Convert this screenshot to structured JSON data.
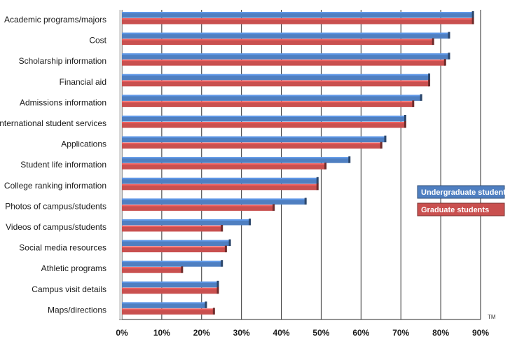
{
  "chart_data": {
    "type": "bar",
    "orientation": "horizontal",
    "categories": [
      "Academic programs/majors",
      "Cost",
      "Scholarship information",
      "Financial aid",
      "Admissions information",
      "International student services",
      "Applications",
      "Student life information",
      "College ranking information",
      "Photos of campus/students",
      "Videos of campus/students",
      "Social media resources",
      "Athletic programs",
      "Campus visit details",
      "Maps/directions"
    ],
    "series": [
      {
        "name": "Undergraduate students",
        "color": "#4f7fc1",
        "values": [
          88,
          82,
          82,
          77,
          75,
          71,
          66,
          57,
          49,
          46,
          32,
          27,
          25,
          24,
          21
        ]
      },
      {
        "name": "Graduate students",
        "color": "#c9504f",
        "values": [
          88,
          78,
          81,
          77,
          73,
          71,
          65,
          51,
          49,
          38,
          25,
          26,
          15,
          24,
          23
        ]
      }
    ],
    "xlim": [
      0,
      90
    ],
    "xticks": [
      "0%",
      "10%",
      "20%",
      "30%",
      "40%",
      "50%",
      "60%",
      "70%",
      "80%",
      "90%"
    ],
    "grid": "vertical",
    "legend_position": "right",
    "trademark": "TM"
  }
}
